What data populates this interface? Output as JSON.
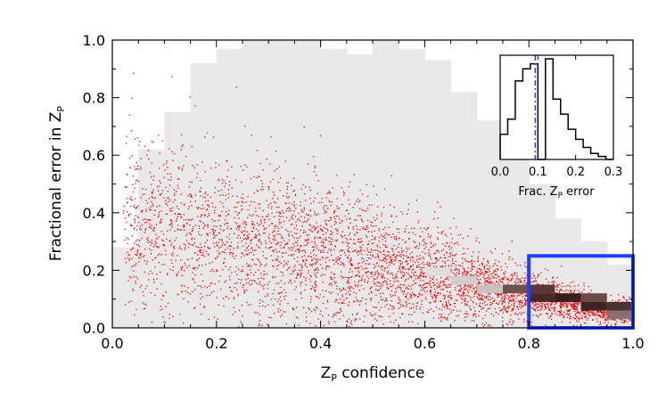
{
  "chart_data": [
    {
      "type": "scatter",
      "title": "",
      "xlabel": "Z_P confidence",
      "ylabel": "Fractional error in Z_P",
      "xlim": [
        0.0,
        1.0
      ],
      "ylim": [
        0.0,
        1.0
      ],
      "x_ticks": [
        "0.0",
        "0.2",
        "0.4",
        "0.6",
        "0.8",
        "1.0"
      ],
      "y_ticks": [
        "0.0",
        "0.2",
        "0.4",
        "0.6",
        "0.8",
        "1.0"
      ],
      "grid": false,
      "background_density": {
        "description_color": "#e8e8e8",
        "bin_width": 0.05,
        "columns": [
          {
            "x": 0.0,
            "ymin": 0.0,
            "ymax": 0.28
          },
          {
            "x": 0.05,
            "ymin": 0.0,
            "ymax": 0.62
          },
          {
            "x": 0.1,
            "ymin": 0.0,
            "ymax": 0.75
          },
          {
            "x": 0.15,
            "ymin": 0.0,
            "ymax": 0.92
          },
          {
            "x": 0.2,
            "ymin": 0.0,
            "ymax": 0.97
          },
          {
            "x": 0.25,
            "ymin": 0.0,
            "ymax": 1.0
          },
          {
            "x": 0.3,
            "ymin": 0.0,
            "ymax": 1.0
          },
          {
            "x": 0.35,
            "ymin": 0.0,
            "ymax": 1.0
          },
          {
            "x": 0.4,
            "ymin": 0.0,
            "ymax": 0.97
          },
          {
            "x": 0.45,
            "ymin": 0.0,
            "ymax": 0.95
          },
          {
            "x": 0.5,
            "ymin": 0.0,
            "ymax": 1.0
          },
          {
            "x": 0.55,
            "ymin": 0.0,
            "ymax": 0.97
          },
          {
            "x": 0.6,
            "ymin": 0.0,
            "ymax": 0.93
          },
          {
            "x": 0.65,
            "ymin": 0.0,
            "ymax": 0.82
          },
          {
            "x": 0.7,
            "ymin": 0.0,
            "ymax": 0.72
          },
          {
            "x": 0.75,
            "ymin": 0.0,
            "ymax": 0.62
          },
          {
            "x": 0.8,
            "ymin": 0.0,
            "ymax": 0.5
          },
          {
            "x": 0.85,
            "ymin": 0.0,
            "ymax": 0.38
          },
          {
            "x": 0.9,
            "ymin": 0.0,
            "ymax": 0.3
          },
          {
            "x": 0.95,
            "ymin": 0.0,
            "ymax": 0.22
          }
        ]
      },
      "dark_bins": [
        {
          "x": 0.7,
          "y": 0.12,
          "shade": "#c9c2c2"
        },
        {
          "x": 0.75,
          "y": 0.12,
          "shade": "#6e5252"
        },
        {
          "x": 0.8,
          "y": 0.12,
          "shade": "#5b3838"
        },
        {
          "x": 0.8,
          "y": 0.09,
          "shade": "#4a2828"
        },
        {
          "x": 0.85,
          "y": 0.09,
          "shade": "#3a1e1e"
        },
        {
          "x": 0.9,
          "y": 0.09,
          "shade": "#6b4a4a"
        },
        {
          "x": 0.9,
          "y": 0.06,
          "shade": "#3e2424"
        },
        {
          "x": 0.95,
          "y": 0.06,
          "shade": "#4d3030"
        },
        {
          "x": 0.95,
          "y": 0.03,
          "shade": "#8a7070"
        },
        {
          "x": 0.65,
          "y": 0.15,
          "shade": "#d4cdcd"
        },
        {
          "x": 0.6,
          "y": 0.18,
          "shade": "#dedede"
        }
      ],
      "scatter_color": "#ff0000",
      "scatter_trend": {
        "description": "red points following decreasing error with increasing confidence",
        "x_samples": [
          0.05,
          0.15,
          0.25,
          0.35,
          0.45,
          0.55,
          0.65,
          0.75,
          0.85,
          0.95
        ],
        "y_center": [
          0.35,
          0.33,
          0.3,
          0.26,
          0.23,
          0.2,
          0.17,
          0.13,
          0.1,
          0.06
        ],
        "y_spread": [
          0.3,
          0.28,
          0.27,
          0.25,
          0.22,
          0.18,
          0.14,
          0.09,
          0.06,
          0.04
        ],
        "n_points": 5000
      },
      "selection_box": {
        "x_min": 0.8,
        "x_max": 1.0,
        "y_min": 0.0,
        "y_max": 0.25,
        "color": "#1f3fff"
      }
    },
    {
      "type": "histogram",
      "title": "",
      "xlabel": "Frac. Z_P error",
      "xlim": [
        0.0,
        0.3
      ],
      "x_ticks": [
        "0.0",
        "0.1",
        "0.2",
        "0.3"
      ],
      "series": [
        {
          "bin_edges": [
            0.0,
            0.02,
            0.04,
            0.06,
            0.08,
            0.1,
            0.12,
            0.14,
            0.16,
            0.18,
            0.2,
            0.22,
            0.24,
            0.26,
            0.28,
            0.3
          ],
          "counts": [
            0.25,
            0.4,
            0.78,
            0.9,
            0.95,
            0.0,
            1.0,
            0.6,
            0.45,
            0.3,
            0.2,
            0.12,
            0.06,
            0.03,
            0.0
          ]
        }
      ],
      "cut_line": {
        "x": 0.093,
        "color": "#1f3fff",
        "style": "dash-dot"
      }
    }
  ]
}
